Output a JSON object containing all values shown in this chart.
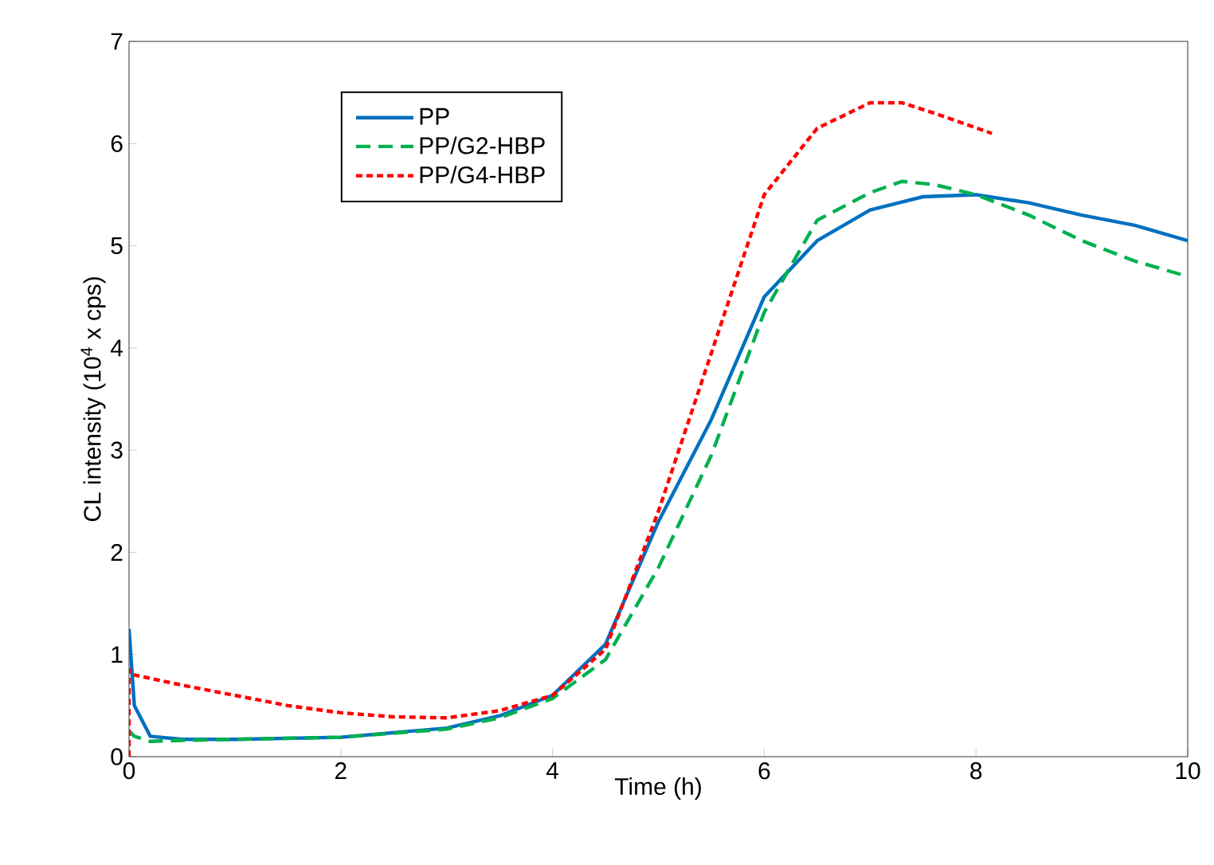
{
  "chart_data": {
    "type": "line",
    "xlabel": "Time  (h)",
    "ylabel": "CL intensity (10$^{4}$ x cps)",
    "xlim": [
      0,
      10
    ],
    "ylim": [
      0,
      7
    ],
    "xticks": [
      0,
      2,
      4,
      6,
      8,
      10
    ],
    "yticks": [
      0,
      1,
      2,
      3,
      4,
      5,
      6,
      7
    ],
    "legend": "top left",
    "grid": false,
    "marker": "none",
    "series": [
      {
        "name": "PP",
        "color": "#0070c0",
        "line_style": "solid",
        "x": [
          0,
          0.05,
          0.2,
          0.5,
          1,
          2,
          3,
          3.5,
          4,
          4.5,
          5,
          5.5,
          6,
          6.5,
          7,
          7.5,
          8,
          8.5,
          9,
          9.5,
          10
        ],
        "values": [
          1.25,
          0.5,
          0.2,
          0.17,
          0.17,
          0.19,
          0.28,
          0.4,
          0.6,
          1.1,
          2.3,
          3.3,
          4.5,
          5.05,
          5.35,
          5.48,
          5.5,
          5.42,
          5.3,
          5.2,
          5.05
        ]
      },
      {
        "name": "PP/G2-HBP",
        "color": "#00b050",
        "line_style": "dashed",
        "x": [
          0,
          0.05,
          0.2,
          0.5,
          1,
          2,
          3,
          3.5,
          4,
          4.5,
          5,
          5.5,
          6,
          6.5,
          7,
          7.3,
          7.6,
          8,
          8.5,
          9,
          9.5,
          10
        ],
        "values": [
          0.25,
          0.2,
          0.15,
          0.16,
          0.17,
          0.19,
          0.27,
          0.38,
          0.57,
          0.95,
          1.85,
          2.95,
          4.35,
          5.25,
          5.52,
          5.63,
          5.6,
          5.5,
          5.3,
          5.05,
          4.85,
          4.7
        ]
      },
      {
        "name": "PP/G4-HBP",
        "color": "#ff0000",
        "line_style": "dotted",
        "x": [
          0,
          0,
          0.05,
          0.5,
          1,
          1.5,
          2,
          2.5,
          3,
          3.5,
          4,
          4.5,
          5,
          5.5,
          6,
          6.5,
          7,
          7.3,
          7.6,
          8.15
        ],
        "values": [
          0,
          0.85,
          0.8,
          0.7,
          0.6,
          0.5,
          0.43,
          0.39,
          0.38,
          0.45,
          0.6,
          1.05,
          2.4,
          3.95,
          5.5,
          6.15,
          6.4,
          6.4,
          6.3,
          6.1
        ]
      }
    ]
  }
}
